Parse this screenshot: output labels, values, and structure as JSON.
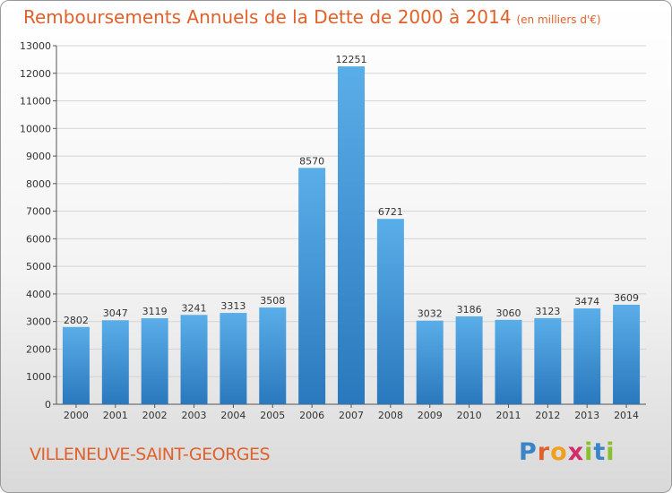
{
  "title": "Remboursements Annuels de la Dette de 2000 à 2014",
  "unit": "(en milliers d'€)",
  "city": "VILLENEUVE-SAINT-GEORGES",
  "logo": [
    "P",
    "r",
    "o",
    "x",
    "i",
    "t",
    "i"
  ],
  "colors": {
    "title": "#e0612a",
    "bar_top": "#5aaee8",
    "bar_bottom": "#2a78bd"
  },
  "chart_data": {
    "type": "bar",
    "title": "Remboursements Annuels de la Dette de 2000 à 2014",
    "categories": [
      "2000",
      "2001",
      "2002",
      "2003",
      "2004",
      "2005",
      "2006",
      "2007",
      "2008",
      "2009",
      "2010",
      "2011",
      "2012",
      "2013",
      "2014"
    ],
    "values": [
      2802,
      3047,
      3119,
      3241,
      3313,
      3508,
      8570,
      12251,
      6721,
      3032,
      3186,
      3060,
      3123,
      3474,
      3609
    ],
    "ylim": [
      0,
      13000
    ],
    "yticks": [
      0,
      1000,
      2000,
      3000,
      4000,
      5000,
      6000,
      7000,
      8000,
      9000,
      10000,
      11000,
      12000,
      13000
    ],
    "grid": true,
    "legend": "none"
  }
}
